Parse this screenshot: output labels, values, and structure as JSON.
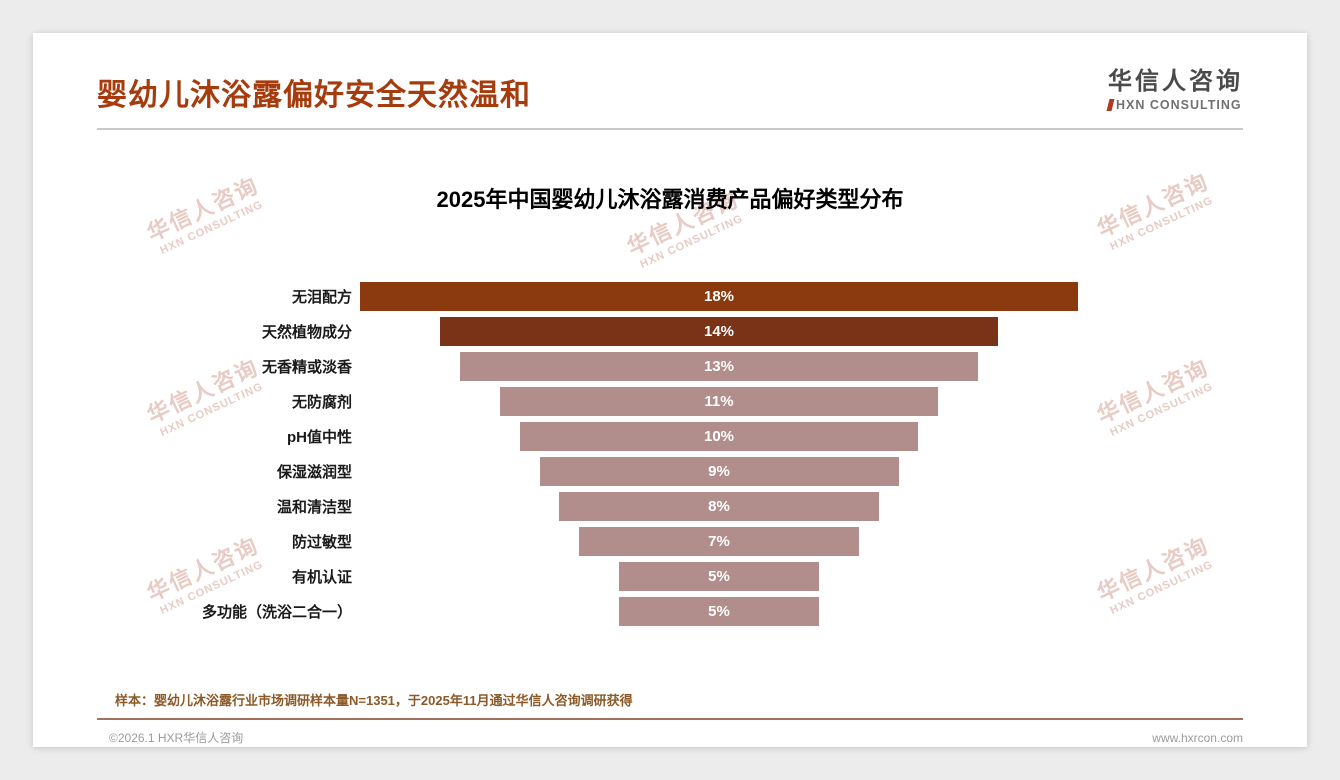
{
  "header": {
    "title": "婴幼儿沐浴露偏好安全天然温和",
    "logo": {
      "cn": "华信人咨询",
      "en": "HXN CONSULTING"
    }
  },
  "watermark": {
    "cn": "华信人咨询",
    "en": "HXN CONSULTING"
  },
  "chart_data": {
    "type": "bar",
    "title": "2025年中国婴幼儿沐浴露消费产品偏好类型分布",
    "orientation": "horizontal_centered_funnel",
    "categories": [
      "无泪配方",
      "天然植物成分",
      "无香精或淡香",
      "无防腐剂",
      "pH值中性",
      "保湿滋润型",
      "温和清洁型",
      "防过敏型",
      "有机认证",
      "多功能（洗浴二合一）"
    ],
    "values": [
      18,
      14,
      13,
      11,
      10,
      9,
      8,
      7,
      5,
      5
    ],
    "value_labels": [
      "18%",
      "14%",
      "13%",
      "11%",
      "10%",
      "9%",
      "8%",
      "7%",
      "5%",
      "5%"
    ],
    "bar_colors": [
      "#8A3A0E",
      "#7A3316",
      "#B18E8B",
      "#B18E8B",
      "#B18E8B",
      "#B18E8B",
      "#B18E8B",
      "#B18E8B",
      "#B18E8B",
      "#B18E8B"
    ],
    "xlim": [
      0,
      18
    ],
    "grid": false,
    "legend": false,
    "value_label_position": "inside_center",
    "value_label_color": "#FFFFFF"
  },
  "footnote": "样本：婴幼儿沐浴露行业市场调研样本量N=1351，于2025年11月通过华信人咨询调研获得",
  "footer": {
    "copyright": "©2026.1 HXR华信人咨询",
    "website": "www.hxrcon.com"
  },
  "colors": {
    "title_accent": "#A63C0E",
    "bar_primary": "#8A3A0E",
    "bar_secondary": "#7A3316",
    "bar_default": "#B18E8B",
    "footnote_text": "#8C5A28",
    "watermark": "#E7CBC4"
  }
}
